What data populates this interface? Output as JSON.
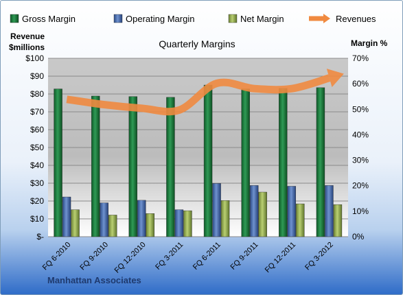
{
  "chart_data": {
    "type": "bar",
    "title": "Quarterly Margins",
    "company": "Manhattan Associates",
    "ylabel_left": [
      "Revenue",
      "$millions"
    ],
    "ylabel_right": "Margin %",
    "ylim_left": [
      0,
      100
    ],
    "ylim_right": [
      0,
      70
    ],
    "left_ticks": [
      "$-",
      "$10",
      "$20",
      "$30",
      "$40",
      "$50",
      "$60",
      "$70",
      "$80",
      "$90",
      "$100"
    ],
    "right_ticks": [
      "0%",
      "10%",
      "20%",
      "30%",
      "40%",
      "50%",
      "60%",
      "70%"
    ],
    "categories": [
      "FQ 6-2010",
      "FQ 9-2010",
      "FQ 12-2010",
      "FQ 3-2011",
      "FQ 6-2011",
      "FQ 9-2011",
      "FQ 12-2011",
      "FQ 3-2012"
    ],
    "series": [
      {
        "name": "Gross Margin",
        "type": "bar",
        "axis": "right",
        "color": "#1e7a3c",
        "values": [
          58,
          55.2,
          55,
          54.7,
          59.5,
          58,
          58.2,
          58.5
        ]
      },
      {
        "name": "Operating Margin",
        "type": "bar",
        "axis": "right",
        "color": "#3f64a8",
        "values": [
          15.6,
          13.3,
          14.3,
          10.6,
          20.9,
          20.1,
          19.8,
          20.1
        ]
      },
      {
        "name": "Net Margin",
        "type": "bar",
        "axis": "right",
        "color": "#8fa84a",
        "values": [
          10.6,
          8.5,
          9.1,
          10.2,
          14.2,
          17.5,
          12.9,
          12.6
        ]
      },
      {
        "name": "Revenues",
        "type": "line",
        "axis": "left",
        "color": "#f08a40",
        "values": [
          77,
          74,
          72,
          71,
          86,
          83,
          83,
          89
        ]
      }
    ],
    "grid": true,
    "legend_position": "top"
  }
}
